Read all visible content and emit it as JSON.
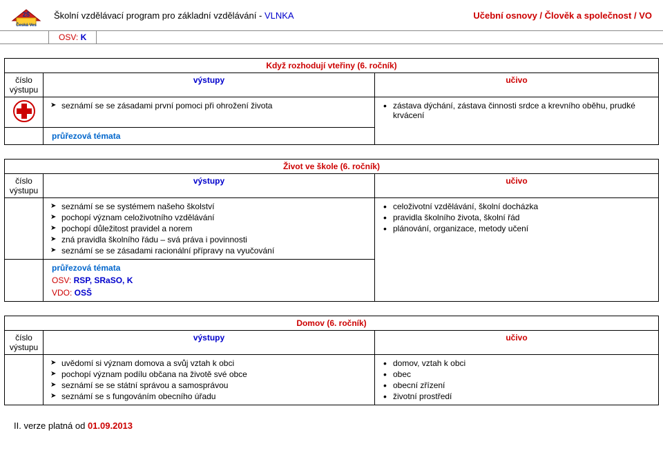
{
  "colors": {
    "blue": "#0000cc",
    "red": "#cc0000",
    "link_blue": "#0066cc",
    "border": "#000000",
    "header_border": "#888888",
    "background": "#ffffff"
  },
  "header": {
    "program_text_prefix": "Školní vzdělávací program pro základní vzdělávání - ",
    "program_link": "VLNKA",
    "right_prefix": "Učební osnovy / ",
    "right_bold": "Člověk a společnost / ",
    "right_suffix": "VO",
    "sub_osv_label": "OSV:",
    "sub_osv_val": "K"
  },
  "col_headers": {
    "num": "číslo výstupu",
    "out": "výstupy",
    "cont": "učivo"
  },
  "sections": [
    {
      "title": "Když rozhodují vteřiny (6. ročník)",
      "icon": "medical-cross",
      "vystupy": [
        "seznámí se se zásadami první pomoci při ohrožení života"
      ],
      "ucivo": [
        "zástava dýchání, zástava činnosti srdce a krevního oběhu, prudké krvácení"
      ],
      "cross_label": "průřezová témata",
      "cross_lines": []
    },
    {
      "title": "Život ve škole (6. ročník)",
      "icon": "",
      "vystupy": [
        "seznámí se se systémem našeho školství",
        "pochopí význam celoživotního vzdělávání",
        "pochopí důležitost pravidel a norem",
        "zná pravidla školního řádu – svá práva i povinnosti",
        "seznámí se se zásadami racionální přípravy na vyučování"
      ],
      "ucivo": [
        "celoživotní vzdělávání, školní docházka",
        "pravidla školního života, školní řád",
        "plánování, organizace, metody učení"
      ],
      "cross_label": "průřezová témata",
      "cross_lines": [
        "OSV: RSP, SRaSO, K",
        "VDO: OSŠ"
      ]
    },
    {
      "title": "Domov (6. ročník)",
      "icon": "",
      "vystupy": [
        "uvědomí si význam domova a svůj vztah k obci",
        "pochopí význam podílu občana na životě své obce",
        "seznámí se se státní správou a samosprávou",
        "seznámí se s fungováním obecního úřadu"
      ],
      "ucivo": [
        "domov, vztah k obci",
        "obec",
        "obecní zřízení",
        "životní prostředí"
      ],
      "cross_label": "",
      "cross_lines": []
    }
  ],
  "footer": {
    "prefix": "II. verze platná od ",
    "date": "01.09.2013"
  }
}
